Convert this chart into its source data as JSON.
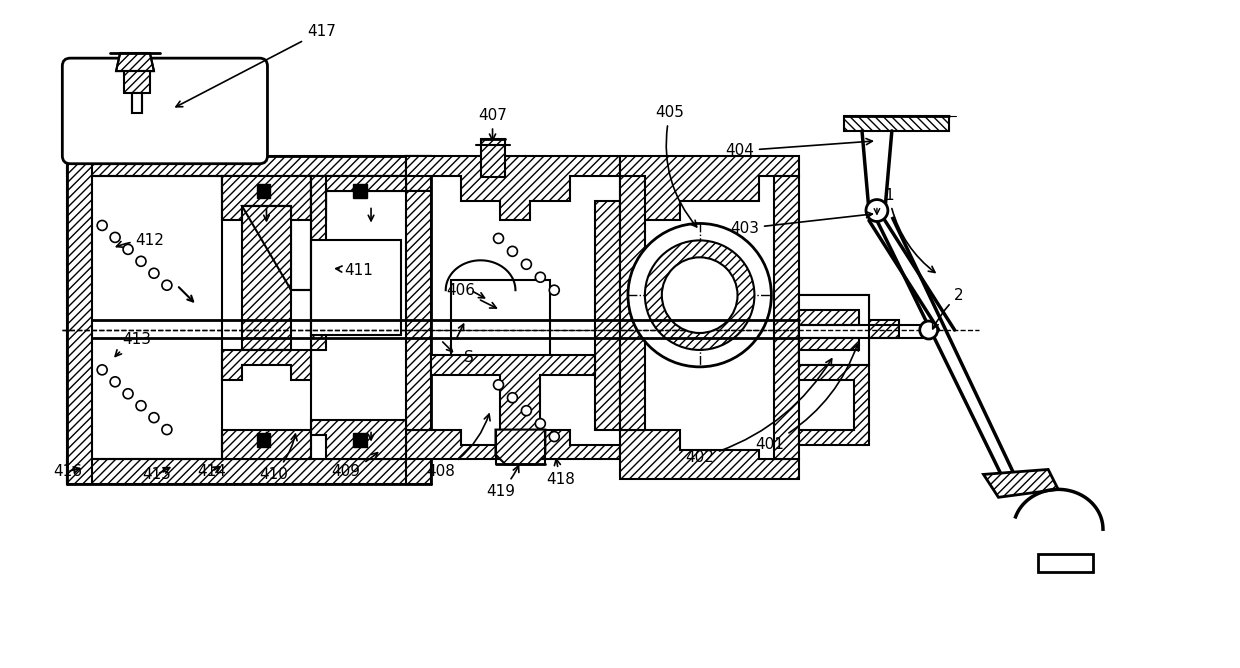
{
  "bg_color": "#ffffff",
  "line_color": "#000000",
  "fig_width": 12.4,
  "fig_height": 6.68,
  "dpi": 100
}
